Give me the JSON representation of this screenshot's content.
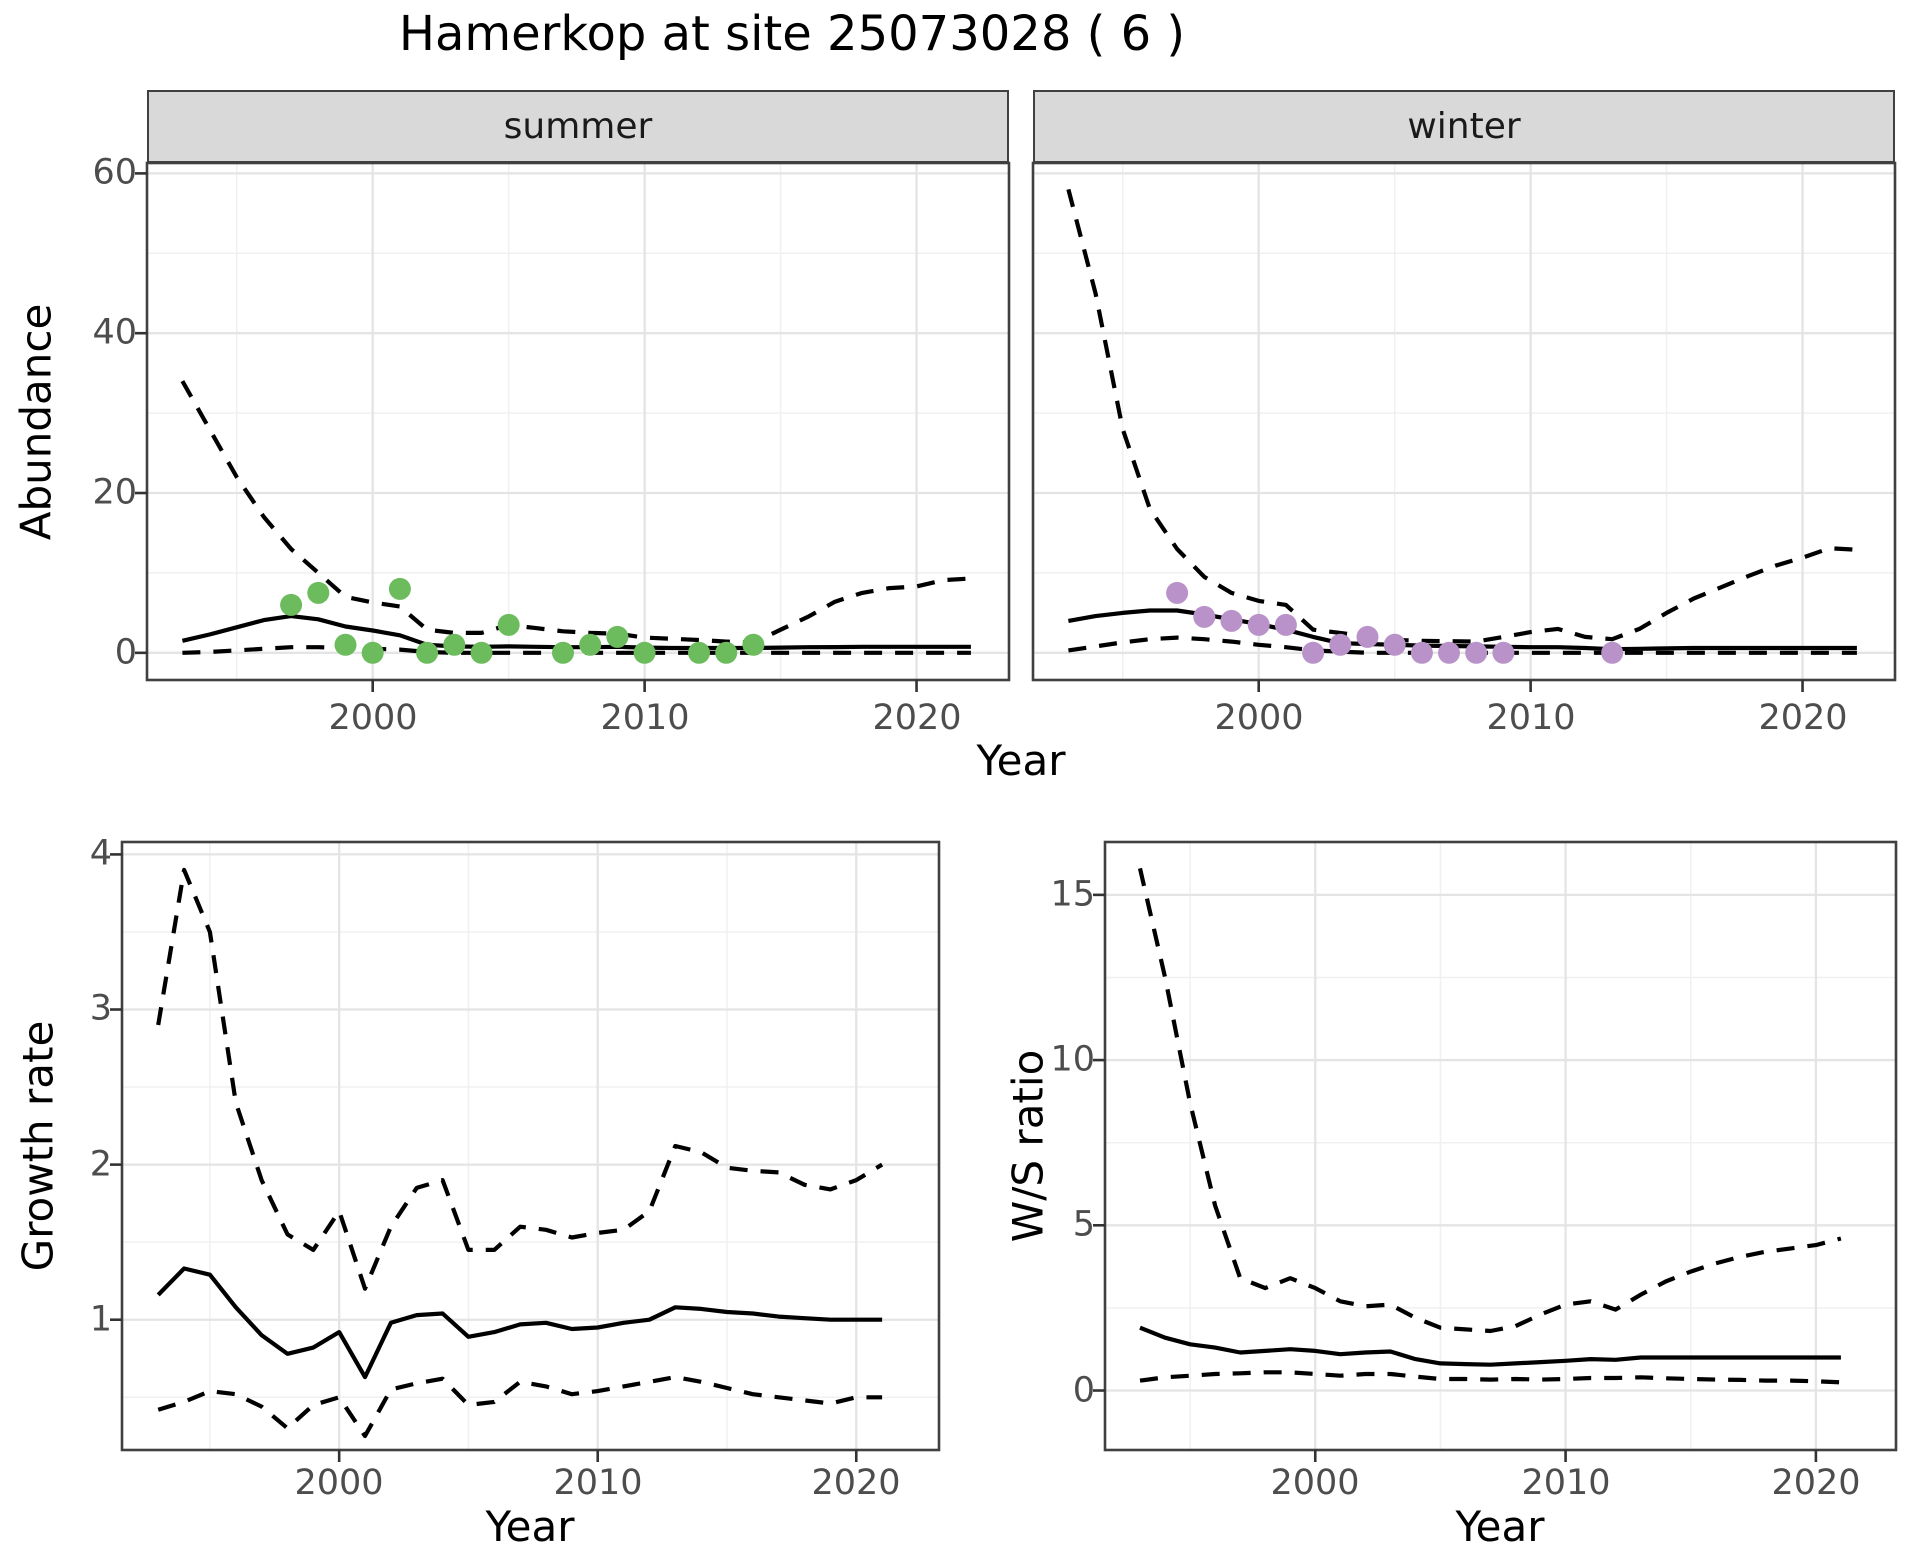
{
  "title": "Hamerkop at site 25073028 ( 6 )",
  "colors": {
    "summer_points": "#6CBB5D",
    "winter_points": "#B992C9",
    "line": "#000000",
    "strip_background": "#D9D9D9",
    "tick_text": "#4D4D4D",
    "panel_border": "#404040",
    "grid_major": "#E4E4E4",
    "grid_minor": "#F0F0F0"
  },
  "chart_data": [
    {
      "id": "abundance_summer",
      "type": "line",
      "facet_label": "summer",
      "ylabel": "Abundance",
      "xlabel": "Year",
      "xlim": [
        1991.7,
        2023.4
      ],
      "ylim": [
        -3.4,
        61.3
      ],
      "x_ticks": [
        2000,
        2010,
        2020
      ],
      "x_minor": [
        1995,
        2005,
        2015
      ],
      "y_ticks": [
        0,
        20,
        40,
        60
      ],
      "y_minor": [
        10,
        30,
        50
      ],
      "grid": true,
      "legend": "none",
      "x": [
        1993,
        1994,
        1995,
        1996,
        1997,
        1998,
        1999,
        2000,
        2001,
        2002,
        2003,
        2004,
        2005,
        2006,
        2007,
        2008,
        2009,
        2010,
        2011,
        2012,
        2013,
        2014,
        2015,
        2016,
        2017,
        2018,
        2019,
        2020,
        2021,
        2022
      ],
      "series": [
        {
          "name": "upper_ci",
          "style": "dashed",
          "values": [
            34,
            28,
            22,
            17,
            13,
            10,
            7,
            6.3,
            5.8,
            2.9,
            2.5,
            2.5,
            3.5,
            3.1,
            2.7,
            2.5,
            2.4,
            1.9,
            1.75,
            1.6,
            1.4,
            1.25,
            2.9,
            4.5,
            6.4,
            7.5,
            8.1,
            8.3,
            9.1,
            9.3
          ]
        },
        {
          "name": "median",
          "style": "solid",
          "values": [
            1.5,
            2.3,
            3.2,
            4.1,
            4.6,
            4.2,
            3.3,
            2.8,
            2.2,
            1.0,
            0.8,
            0.75,
            0.8,
            0.75,
            0.7,
            0.7,
            0.75,
            0.65,
            0.6,
            0.6,
            0.6,
            0.6,
            0.65,
            0.7,
            0.72,
            0.75,
            0.75,
            0.75,
            0.75,
            0.75
          ]
        },
        {
          "name": "lower_ci",
          "style": "dashed",
          "values": [
            0,
            0.1,
            0.3,
            0.5,
            0.7,
            0.7,
            0.6,
            0.5,
            0.4,
            0.1,
            0,
            0,
            0,
            0,
            0,
            0,
            0,
            0,
            0,
            0,
            0,
            0,
            0,
            0,
            0,
            0,
            0,
            0,
            0,
            0
          ]
        }
      ],
      "points": {
        "name": "observed-counts-summer",
        "color": "#6CBB5D",
        "x": [
          1997,
          1998,
          1999,
          2000,
          2001,
          2002,
          2003,
          2004,
          2005,
          2007,
          2008,
          2009,
          2010,
          2012,
          2013,
          2014
        ],
        "y": [
          6,
          7.5,
          1,
          0,
          8,
          0,
          1,
          0,
          3.5,
          0,
          1,
          2,
          0,
          0,
          0,
          1
        ]
      }
    },
    {
      "id": "abundance_winter",
      "type": "line",
      "facet_label": "winter",
      "ylabel": "Abundance",
      "xlabel": "Year",
      "xlim": [
        1991.7,
        2023.4
      ],
      "ylim": [
        -3.4,
        61.3
      ],
      "x_ticks": [
        2000,
        2010,
        2020
      ],
      "x_minor": [
        1995,
        2005,
        2015
      ],
      "y_ticks": [
        0,
        20,
        40,
        60
      ],
      "y_minor": [
        10,
        30,
        50
      ],
      "grid": true,
      "legend": "none",
      "x": [
        1993,
        1994,
        1995,
        1996,
        1997,
        1998,
        1999,
        2000,
        2001,
        2002,
        2003,
        2004,
        2005,
        2006,
        2007,
        2008,
        2009,
        2010,
        2011,
        2012,
        2013,
        2014,
        2015,
        2016,
        2017,
        2018,
        2019,
        2020,
        2021,
        2022
      ],
      "series": [
        {
          "name": "upper_ci",
          "style": "dashed",
          "values": [
            58,
            45,
            28,
            18,
            13,
            9.5,
            7.5,
            6.5,
            6,
            2.9,
            2.5,
            2,
            1.6,
            1.5,
            1.45,
            1.4,
            2,
            2.6,
            3,
            2,
            1.7,
            3,
            5,
            6.8,
            8.2,
            9.6,
            10.9,
            11.9,
            13.1,
            12.9
          ]
        },
        {
          "name": "median",
          "style": "solid",
          "values": [
            4,
            4.6,
            5,
            5.3,
            5.3,
            4.8,
            4.2,
            3.6,
            2.9,
            2,
            1.2,
            1.1,
            1,
            0.9,
            0.85,
            0.8,
            0.75,
            0.7,
            0.7,
            0.6,
            0.45,
            0.5,
            0.55,
            0.6,
            0.6,
            0.6,
            0.6,
            0.6,
            0.6,
            0.6
          ]
        },
        {
          "name": "lower_ci",
          "style": "dashed",
          "values": [
            0.3,
            0.8,
            1.3,
            1.7,
            1.9,
            1.7,
            1.4,
            1,
            0.7,
            0.3,
            0.15,
            0,
            0,
            0,
            0,
            0,
            0,
            0,
            0,
            0,
            0,
            0,
            0,
            0,
            0,
            0,
            0,
            0,
            0,
            0
          ]
        }
      ],
      "points": {
        "name": "observed-counts-winter",
        "color": "#B992C9",
        "x": [
          1997,
          1998,
          1999,
          2000,
          2001,
          2002,
          2003,
          2004,
          2005,
          2006,
          2007,
          2008,
          2009,
          2013
        ],
        "y": [
          7.5,
          4.5,
          4,
          3.5,
          3.5,
          0,
          1,
          2,
          1,
          0,
          0,
          0,
          0,
          0
        ]
      }
    },
    {
      "id": "growth_rate",
      "type": "line",
      "facet_label": "",
      "ylabel": "Growth rate",
      "xlabel": "Year",
      "xlim": [
        1991.6,
        2023.2
      ],
      "ylim": [
        0.16,
        4.08
      ],
      "x_ticks": [
        2000,
        2010,
        2020
      ],
      "x_minor": [
        1995,
        2005,
        2015
      ],
      "y_ticks": [
        1,
        2,
        3,
        4
      ],
      "y_minor": [
        0.5,
        1.5,
        2.5,
        3.5
      ],
      "grid": true,
      "legend": "none",
      "x": [
        1993,
        1994,
        1995,
        1996,
        1997,
        1998,
        1999,
        2000,
        2001,
        2002,
        2003,
        2004,
        2005,
        2006,
        2007,
        2008,
        2009,
        2010,
        2011,
        2012,
        2013,
        2014,
        2015,
        2016,
        2017,
        2018,
        2019,
        2020,
        2021
      ],
      "series": [
        {
          "name": "upper_ci",
          "style": "dashed",
          "values": [
            2.9,
            3.9,
            3.5,
            2.4,
            1.9,
            1.55,
            1.45,
            1.7,
            1.2,
            1.6,
            1.85,
            1.9,
            1.45,
            1.45,
            1.6,
            1.58,
            1.53,
            1.56,
            1.58,
            1.7,
            2.12,
            2.08,
            1.98,
            1.96,
            1.95,
            1.87,
            1.84,
            1.9,
            2.0
          ]
        },
        {
          "name": "median",
          "style": "solid",
          "values": [
            1.16,
            1.33,
            1.29,
            1.08,
            0.9,
            0.78,
            0.82,
            0.92,
            0.63,
            0.98,
            1.03,
            1.04,
            0.89,
            0.92,
            0.97,
            0.98,
            0.94,
            0.95,
            0.98,
            1.0,
            1.08,
            1.07,
            1.05,
            1.04,
            1.02,
            1.01,
            1.0,
            1.0,
            1.0
          ]
        },
        {
          "name": "lower_ci",
          "style": "dashed",
          "values": [
            0.42,
            0.47,
            0.54,
            0.52,
            0.44,
            0.3,
            0.45,
            0.5,
            0.25,
            0.55,
            0.59,
            0.62,
            0.45,
            0.47,
            0.6,
            0.57,
            0.52,
            0.54,
            0.57,
            0.6,
            0.63,
            0.6,
            0.56,
            0.52,
            0.5,
            0.48,
            0.46,
            0.5,
            0.5
          ]
        }
      ],
      "points": null
    },
    {
      "id": "ws_ratio",
      "type": "line",
      "facet_label": "",
      "ylabel": "W/S ratio",
      "xlabel": "Year",
      "xlim": [
        1991.6,
        2023.2
      ],
      "ylim": [
        -1.8,
        16.6
      ],
      "x_ticks": [
        2000,
        2010,
        2020
      ],
      "x_minor": [
        1995,
        2005,
        2015
      ],
      "y_ticks": [
        0,
        5,
        10,
        15
      ],
      "y_minor": [
        2.5,
        7.5,
        12.5
      ],
      "grid": true,
      "legend": "none",
      "x": [
        1993,
        1994,
        1995,
        1996,
        1997,
        1998,
        1999,
        2000,
        2001,
        2002,
        2003,
        2004,
        2005,
        2006,
        2007,
        2008,
        2009,
        2010,
        2011,
        2012,
        2013,
        2014,
        2015,
        2016,
        2017,
        2018,
        2019,
        2020,
        2021
      ],
      "series": [
        {
          "name": "upper_ci",
          "style": "dashed",
          "values": [
            15.8,
            12.5,
            8.7,
            5.6,
            3.4,
            3.1,
            3.4,
            3.1,
            2.7,
            2.55,
            2.6,
            2.2,
            1.9,
            1.85,
            1.8,
            1.95,
            2.3,
            2.6,
            2.7,
            2.45,
            2.9,
            3.3,
            3.6,
            3.85,
            4.05,
            4.2,
            4.3,
            4.4,
            4.6
          ]
        },
        {
          "name": "median",
          "style": "solid",
          "values": [
            1.9,
            1.6,
            1.4,
            1.3,
            1.15,
            1.2,
            1.25,
            1.2,
            1.1,
            1.15,
            1.18,
            0.95,
            0.82,
            0.8,
            0.78,
            0.82,
            0.86,
            0.9,
            0.95,
            0.93,
            1.0,
            1.0,
            1.0,
            1.0,
            1.0,
            1.0,
            1.0,
            1.0,
            1.0
          ]
        },
        {
          "name": "lower_ci",
          "style": "dashed",
          "values": [
            0.3,
            0.4,
            0.45,
            0.5,
            0.52,
            0.55,
            0.55,
            0.5,
            0.45,
            0.5,
            0.5,
            0.42,
            0.35,
            0.35,
            0.33,
            0.35,
            0.33,
            0.35,
            0.38,
            0.38,
            0.4,
            0.37,
            0.35,
            0.33,
            0.32,
            0.3,
            0.3,
            0.28,
            0.25
          ]
        }
      ],
      "points": null
    }
  ]
}
